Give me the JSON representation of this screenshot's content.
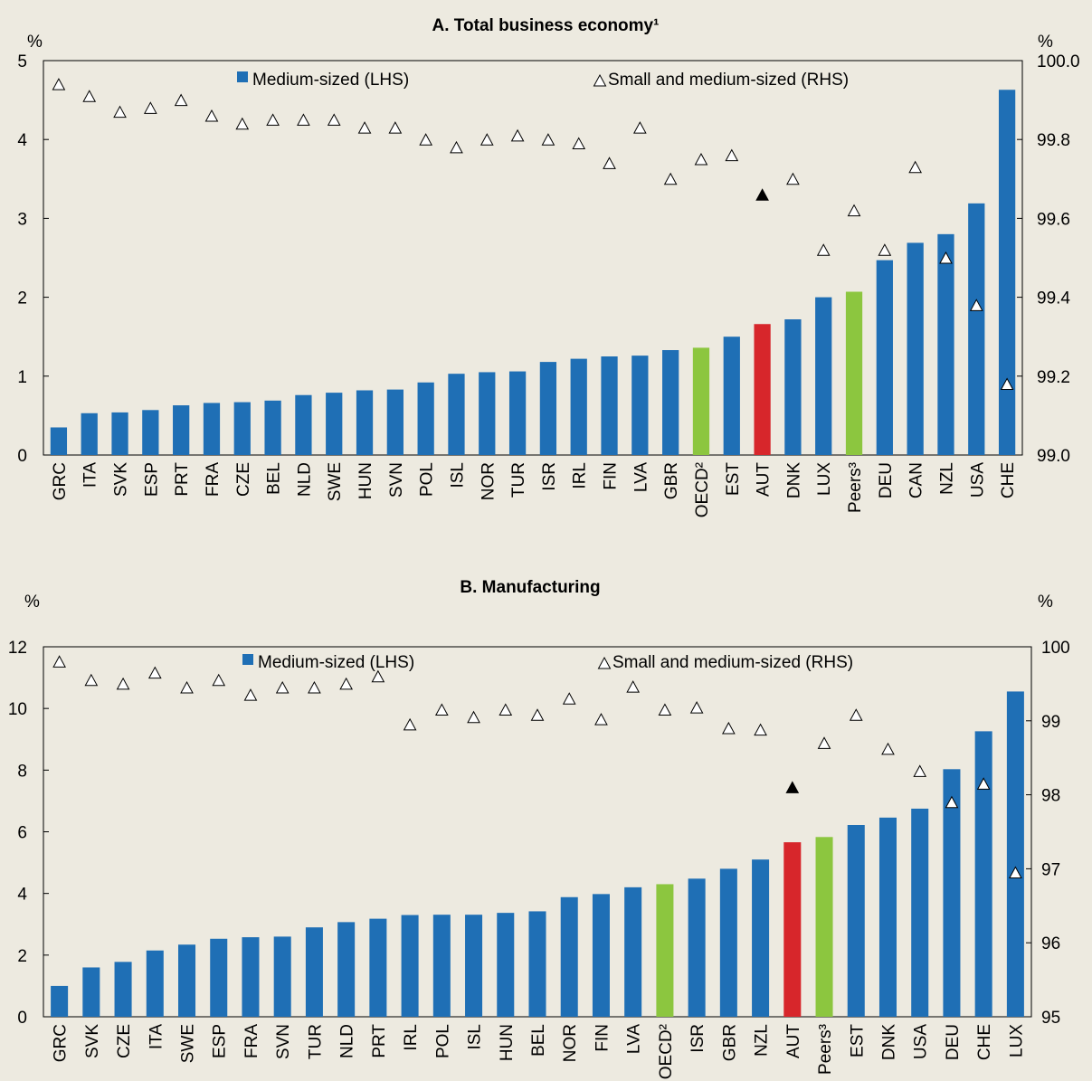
{
  "colors": {
    "background": "#EDEAE0",
    "bar_default": "#1F6FB5",
    "bar_highlight": "#D7262B",
    "bar_aggregate": "#8CC63F",
    "marker_default_fill": "#FFFFFF",
    "marker_highlight_fill": "#000000"
  },
  "icons": {
    "legend_bar": "blue-square-icon",
    "legend_marker": "triangle-outline-icon"
  },
  "chart_data": [
    {
      "type": "bar",
      "title": "A. Total business economy¹",
      "left_unit": "%",
      "right_unit": "%",
      "categories": [
        "GRC",
        "ITA",
        "SVK",
        "ESP",
        "PRT",
        "FRA",
        "CZE",
        "BEL",
        "NLD",
        "SWE",
        "HUN",
        "SVN",
        "POL",
        "ISL",
        "NOR",
        "TUR",
        "ISR",
        "IRL",
        "FIN",
        "LVA",
        "GBR",
        "OECD²",
        "EST",
        "AUT",
        "DNK",
        "LUX",
        "Peers³",
        "DEU",
        "CAN",
        "NZL",
        "USA",
        "CHE"
      ],
      "highlight": "AUT",
      "aggregates": [
        "OECD²",
        "Peers³"
      ],
      "left_axis": {
        "min": 0,
        "max": 5,
        "ticks": [
          0,
          1,
          2,
          3,
          4,
          5
        ],
        "tick_labels": [
          "0",
          "1",
          "2",
          "3",
          "4",
          "5"
        ]
      },
      "right_axis": {
        "min": 99.0,
        "max": 100.0,
        "ticks": [
          99.0,
          99.2,
          99.4,
          99.6,
          99.8,
          100.0
        ],
        "tick_labels": [
          "99.0",
          "99.2",
          "99.4",
          "99.6",
          "99.8",
          "100.0"
        ]
      },
      "series": [
        {
          "name": "Medium-sized (LHS)",
          "kind": "bar",
          "axis": "left",
          "values": [
            0.35,
            0.53,
            0.54,
            0.57,
            0.63,
            0.66,
            0.67,
            0.69,
            0.76,
            0.79,
            0.82,
            0.83,
            0.92,
            1.03,
            1.05,
            1.06,
            1.18,
            1.22,
            1.25,
            1.26,
            1.33,
            1.36,
            1.5,
            1.66,
            1.72,
            2.0,
            2.07,
            2.47,
            2.69,
            2.8,
            3.19,
            4.63
          ]
        },
        {
          "name": "Small and medium-sized (RHS)",
          "kind": "marker",
          "axis": "right",
          "values": [
            99.94,
            99.91,
            99.87,
            99.88,
            99.9,
            99.86,
            99.84,
            99.85,
            99.85,
            99.85,
            99.83,
            99.83,
            99.8,
            99.78,
            99.8,
            99.81,
            99.8,
            99.79,
            99.74,
            99.83,
            99.7,
            99.75,
            99.76,
            99.66,
            99.7,
            99.52,
            99.62,
            99.52,
            99.73,
            99.5,
            99.38,
            99.18
          ]
        }
      ]
    },
    {
      "type": "bar",
      "title": "B. Manufacturing",
      "left_unit": "%",
      "right_unit": "%",
      "categories": [
        "GRC",
        "SVK",
        "CZE",
        "ITA",
        "SWE",
        "ESP",
        "FRA",
        "SVN",
        "TUR",
        "NLD",
        "PRT",
        "IRL",
        "POL",
        "ISL",
        "HUN",
        "BEL",
        "NOR",
        "FIN",
        "LVA",
        "OECD²",
        "ISR",
        "GBR",
        "NZL",
        "AUT",
        "Peers³",
        "EST",
        "DNK",
        "USA",
        "DEU",
        "CHE",
        "LUX"
      ],
      "highlight": "AUT",
      "aggregates": [
        "OECD²",
        "Peers³"
      ],
      "left_axis": {
        "min": 0,
        "max": 12,
        "ticks": [
          0,
          2,
          4,
          6,
          8,
          10,
          12
        ],
        "tick_labels": [
          "0",
          "2",
          "4",
          "6",
          "8",
          "10",
          "12"
        ]
      },
      "right_axis": {
        "min": 95,
        "max": 100,
        "ticks": [
          95,
          96,
          97,
          98,
          99,
          100
        ],
        "tick_labels": [
          "95",
          "96",
          "97",
          "98",
          "99",
          "100"
        ]
      },
      "series": [
        {
          "name": "Medium-sized (LHS)",
          "kind": "bar",
          "axis": "left",
          "values": [
            1.0,
            1.6,
            1.78,
            2.15,
            2.34,
            2.53,
            2.58,
            2.6,
            2.9,
            3.07,
            3.18,
            3.3,
            3.31,
            3.31,
            3.37,
            3.42,
            3.88,
            3.98,
            4.2,
            4.3,
            4.48,
            4.8,
            5.1,
            5.66,
            5.83,
            6.22,
            6.46,
            6.75,
            8.03,
            9.26,
            10.55
          ]
        },
        {
          "name": "Small and medium-sized (RHS)",
          "kind": "marker",
          "axis": "right",
          "values": [
            99.8,
            99.55,
            99.5,
            99.65,
            99.45,
            99.55,
            99.35,
            99.45,
            99.45,
            99.5,
            99.6,
            98.95,
            99.15,
            99.05,
            99.15,
            99.08,
            99.3,
            99.02,
            99.46,
            99.15,
            99.18,
            98.9,
            98.88,
            98.1,
            98.7,
            99.08,
            98.62,
            98.32,
            97.9,
            98.15,
            96.95
          ]
        }
      ]
    }
  ]
}
